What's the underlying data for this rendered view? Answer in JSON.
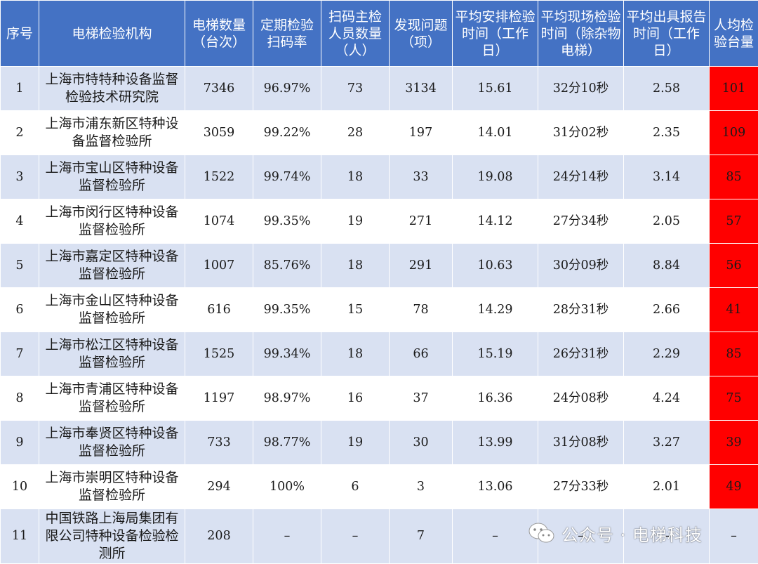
{
  "header": {
    "seq": "序号",
    "org": "电梯检验机构",
    "count": "电梯数量（台次）",
    "scan_rate": "定期检验扫码率",
    "staff": "扫码主检人员数量（人）",
    "issues": "发现问题（项）",
    "sched": "平均安排检验时间（工作日）",
    "onsite": "平均现场检验时间（除杂物电梯）",
    "report": "平均出具报告时间（工作日）",
    "per_capita": "人均检验台量"
  },
  "rows": [
    {
      "seq": "1",
      "org": "上海市特特种设备监督检验技术研究院",
      "count": "7346",
      "scan_rate": "96.97%",
      "staff": "73",
      "issues": "3134",
      "sched": "15.61",
      "onsite": "32分10秒",
      "report": "2.58",
      "per_capita": "101"
    },
    {
      "seq": "2",
      "org": "上海市浦东新区特种设备监督检验所",
      "count": "3059",
      "scan_rate": "99.22%",
      "staff": "28",
      "issues": "197",
      "sched": "14.01",
      "onsite": "31分02秒",
      "report": "2.35",
      "per_capita": "109"
    },
    {
      "seq": "3",
      "org": "上海市宝山区特种设备监督检验所",
      "count": "1522",
      "scan_rate": "99.74%",
      "staff": "18",
      "issues": "33",
      "sched": "19.08",
      "onsite": "24分14秒",
      "report": "3.14",
      "per_capita": "85"
    },
    {
      "seq": "4",
      "org": "上海市闵行区特种设备监督检验所",
      "count": "1074",
      "scan_rate": "99.35%",
      "staff": "19",
      "issues": "271",
      "sched": "14.12",
      "onsite": "27分34秒",
      "report": "2.05",
      "per_capita": "57"
    },
    {
      "seq": "5",
      "org": "上海市嘉定区特种设备监督检验所",
      "count": "1007",
      "scan_rate": "85.76%",
      "staff": "18",
      "issues": "291",
      "sched": "10.63",
      "onsite": "30分09秒",
      "report": "8.84",
      "per_capita": "56"
    },
    {
      "seq": "6",
      "org": "上海市金山区特种设备监督检验所",
      "count": "616",
      "scan_rate": "99.35%",
      "staff": "15",
      "issues": "78",
      "sched": "14.29",
      "onsite": "28分31秒",
      "report": "2.66",
      "per_capita": "41"
    },
    {
      "seq": "7",
      "org": "上海市松江区特种设备监督检验所",
      "count": "1525",
      "scan_rate": "99.34%",
      "staff": "18",
      "issues": "66",
      "sched": "15.19",
      "onsite": "26分31秒",
      "report": "2.29",
      "per_capita": "85"
    },
    {
      "seq": "8",
      "org": "上海市青浦区特种设备监督检验所",
      "count": "1197",
      "scan_rate": "98.97%",
      "staff": "16",
      "issues": "37",
      "sched": "16.36",
      "onsite": "24分08秒",
      "report": "4.24",
      "per_capita": "75"
    },
    {
      "seq": "9",
      "org": "上海市奉贤区特种设备监督检验所",
      "count": "733",
      "scan_rate": "98.77%",
      "staff": "19",
      "issues": "30",
      "sched": "13.99",
      "onsite": "31分08秒",
      "report": "3.27",
      "per_capita": "39"
    },
    {
      "seq": "10",
      "org": "上海市崇明区特种设备监督检验所",
      "count": "294",
      "scan_rate": "100%",
      "staff": "6",
      "issues": "3",
      "sched": "13.06",
      "onsite": "27分33秒",
      "report": "2.01",
      "per_capita": "49"
    },
    {
      "seq": "11",
      "org": "中国铁路上海局集团有限公司特种设备检验检测所",
      "count": "208",
      "scan_rate": "–",
      "staff": "–",
      "issues": "7",
      "sched": "–",
      "onsite": "–",
      "report": "–",
      "per_capita": "–"
    }
  ],
  "watermark": "公众号 · 电梯科技",
  "colors": {
    "header_bg": "#4472c4",
    "band_odd": "#d9e1f2",
    "band_even": "#ffffff",
    "highlight": "#ff0000"
  },
  "icons": {
    "watermark_icon": "wechat-icon"
  }
}
